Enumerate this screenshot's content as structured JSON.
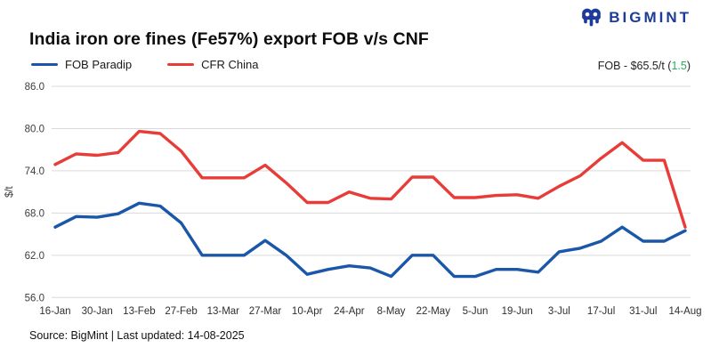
{
  "brand": {
    "name": "BIGMINT",
    "color": "#1d3c99"
  },
  "header": {
    "title": "India iron ore fines (Fe57%) export FOB v/s CNF"
  },
  "legend": [
    {
      "label": "FOB Paradip",
      "color": "#1b57a8"
    },
    {
      "label": "CFR China",
      "color": "#e83c39"
    }
  ],
  "annotation": {
    "prefix": "FOB - $65.5/t (",
    "change": "1.5",
    "suffix": ")",
    "change_color": "#27ae60"
  },
  "footer": {
    "source": "Source: BigMint | Last updated: 14-08-2025"
  },
  "chart_data": {
    "type": "line",
    "title": "India iron ore fines (Fe57%) export FOB v/s CNF",
    "xlabel": "",
    "ylabel": "$/t",
    "ylim": [
      56,
      86
    ],
    "grid": "horizontal",
    "legend_position": "top-left",
    "ytick_values": [
      86,
      80,
      74,
      68,
      62,
      56
    ],
    "ytick_labels": [
      "86.0",
      "80.0",
      "74.0",
      "68.0",
      "62.0",
      "56.0"
    ],
    "x": [
      "16-Jan",
      "23-Jan",
      "30-Jan",
      "6-Feb",
      "13-Feb",
      "20-Feb",
      "27-Feb",
      "6-Mar",
      "13-Mar",
      "20-Mar",
      "27-Mar",
      "3-Apr",
      "10-Apr",
      "17-Apr",
      "24-Apr",
      "1-May",
      "8-May",
      "15-May",
      "22-May",
      "29-May",
      "5-Jun",
      "12-Jun",
      "19-Jun",
      "26-Jun",
      "3-Jul",
      "10-Jul",
      "17-Jul",
      "24-Jul",
      "31-Jul",
      "7-Aug",
      "14-Aug"
    ],
    "x_tick_labels": [
      "16-Jan",
      "30-Jan",
      "13-Feb",
      "27-Feb",
      "13-Mar",
      "27-Mar",
      "10-Apr",
      "24-Apr",
      "8-May",
      "22-May",
      "5-Jun",
      "19-Jun",
      "3-Jul",
      "17-Jul",
      "31-Jul",
      "14-Aug"
    ],
    "series": [
      {
        "name": "FOB Paradip",
        "color": "#1b57a8",
        "values": [
          66,
          67.5,
          67.4,
          67.9,
          69.4,
          69,
          66.6,
          62,
          62,
          62,
          64.1,
          62,
          59.3,
          60,
          60.5,
          60.2,
          59,
          62,
          62,
          59,
          59,
          60,
          60,
          59.6,
          62.5,
          63,
          64,
          66,
          64,
          64,
          65.5
        ]
      },
      {
        "name": "CFR China",
        "color": "#e83c39",
        "values": [
          74.9,
          76.4,
          76.2,
          76.6,
          79.6,
          79.3,
          76.8,
          73,
          73,
          73,
          74.8,
          72.3,
          69.5,
          69.5,
          71,
          70.1,
          70,
          73.1,
          73.1,
          70.2,
          70.2,
          70.5,
          70.6,
          70.1,
          71.8,
          73.3,
          75.8,
          78,
          75.5,
          75.5,
          66
        ]
      }
    ]
  }
}
